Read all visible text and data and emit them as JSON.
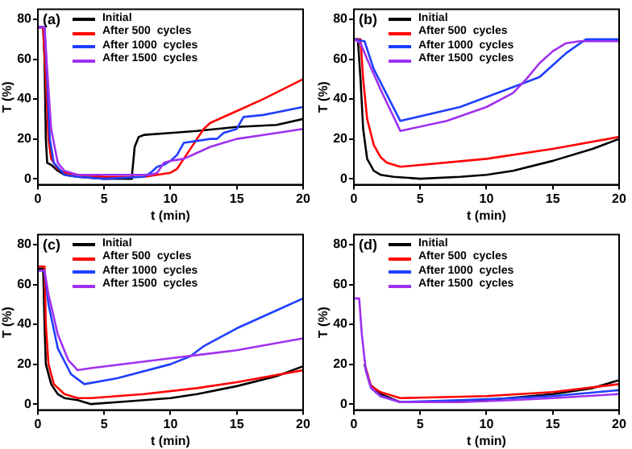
{
  "chart_data": [
    {
      "type": "line",
      "annotations": [
        "(a)"
      ],
      "xlabel": "t (min)",
      "ylabel": "T (%)",
      "xlim": [
        0,
        20
      ],
      "xticks": [
        0,
        5,
        10,
        15,
        20
      ],
      "ylim": [
        -3,
        85
      ],
      "yticks": [
        0,
        20,
        40,
        60,
        80
      ],
      "legend": "top left",
      "marker": "none",
      "line_style": "solid",
      "series": [
        {
          "name": "Initial",
          "color": "#000000",
          "x": [
            0,
            0.4,
            0.5,
            0.6,
            0.7,
            1,
            1.5,
            2,
            3,
            5,
            7,
            7.1,
            7.3,
            7.6,
            8,
            10,
            12,
            15,
            18,
            20
          ],
          "values": [
            76,
            76,
            60,
            20,
            8,
            7,
            4,
            2,
            1,
            0,
            0,
            2,
            16,
            21,
            22,
            23,
            24,
            26,
            27,
            30
          ]
        },
        {
          "name": "After 500  cycles",
          "color": "#ff0000",
          "x": [
            0,
            0.4,
            0.6,
            0.8,
            1,
            1.5,
            2,
            3,
            5,
            8,
            9,
            10,
            10.5,
            11,
            12,
            12.5,
            13,
            15,
            17,
            20
          ],
          "values": [
            76,
            76,
            50,
            20,
            10,
            5,
            3,
            2,
            1,
            1,
            2,
            3,
            5,
            10,
            20,
            25,
            28,
            34,
            40,
            50
          ]
        },
        {
          "name": "After 1000  cycles",
          "color": "#1f3fff",
          "x": [
            0,
            0.5,
            0.7,
            0.9,
            1.2,
            2,
            3,
            5,
            8,
            8.5,
            9,
            9.5,
            10,
            10.5,
            11,
            12,
            13,
            13.5,
            14,
            15,
            15.5,
            17,
            20
          ],
          "values": [
            76,
            76,
            50,
            20,
            8,
            2,
            1,
            0,
            1,
            3,
            6,
            7,
            9,
            12,
            18,
            19,
            20,
            20,
            23,
            25,
            31,
            32,
            36
          ]
        },
        {
          "name": "After 1500  cycles",
          "color": "#a030f0",
          "x": [
            0,
            0.5,
            0.7,
            1,
            1.5,
            2,
            3,
            5,
            8.5,
            9,
            9.5,
            10,
            11,
            12,
            13,
            14,
            15,
            17,
            20
          ],
          "values": [
            76,
            76,
            55,
            25,
            8,
            4,
            2,
            2,
            2,
            3,
            8,
            9,
            10,
            13,
            16,
            18,
            20,
            22,
            25
          ]
        }
      ]
    },
    {
      "type": "line",
      "annotations": [
        "(b)"
      ],
      "xlabel": "t (min)",
      "ylabel": "T (%)",
      "xlim": [
        0,
        20
      ],
      "xticks": [
        0,
        5,
        10,
        15,
        20
      ],
      "ylim": [
        -3,
        85
      ],
      "yticks": [
        0,
        20,
        40,
        60,
        80
      ],
      "legend": "top left",
      "marker": "none",
      "line_style": "solid",
      "series": [
        {
          "name": "Initial",
          "color": "#000000",
          "x": [
            0,
            0.3,
            0.5,
            0.7,
            1,
            1.5,
            2,
            3,
            5,
            8,
            10,
            12,
            15,
            18,
            20
          ],
          "values": [
            70,
            70,
            50,
            25,
            10,
            4,
            2,
            1,
            0,
            1,
            2,
            4,
            9,
            15,
            20
          ]
        },
        {
          "name": "After 500  cycles",
          "color": "#ff0000",
          "x": [
            0,
            0.5,
            0.7,
            1,
            1.5,
            2,
            2.5,
            3.5,
            10,
            15,
            20
          ],
          "values": [
            70,
            70,
            50,
            30,
            17,
            11,
            8,
            6,
            10,
            15,
            21
          ]
        },
        {
          "name": "After 1000  cycles",
          "color": "#1f3fff",
          "x": [
            0,
            0.8,
            1.5,
            3.5,
            8,
            12,
            14,
            15,
            16,
            17.5,
            20
          ],
          "values": [
            70,
            69,
            55,
            29,
            36,
            46,
            51,
            57,
            63,
            70,
            70
          ]
        },
        {
          "name": "After 1500  cycles",
          "color": "#a030f0",
          "x": [
            0,
            0.5,
            1,
            2,
            3.5,
            7,
            10,
            12,
            13,
            14,
            15,
            16,
            17,
            20
          ],
          "values": [
            70,
            68,
            60,
            45,
            24,
            29,
            36,
            43,
            50,
            58,
            64,
            68,
            69,
            69
          ]
        }
      ]
    },
    {
      "type": "line",
      "annotations": [
        "(c)"
      ],
      "xlabel": "t (min)",
      "ylabel": "T (%)",
      "xlim": [
        0,
        20
      ],
      "xticks": [
        0,
        5,
        10,
        15,
        20
      ],
      "ylim": [
        -3,
        85
      ],
      "yticks": [
        0,
        20,
        40,
        60,
        80
      ],
      "legend": "top left",
      "marker": "none",
      "line_style": "solid",
      "series": [
        {
          "name": "Initial",
          "color": "#000000",
          "x": [
            0,
            0.4,
            0.5,
            0.6,
            1,
            1.5,
            2,
            3,
            4,
            6,
            8,
            10,
            12,
            15,
            18,
            20
          ],
          "values": [
            68,
            68,
            40,
            20,
            10,
            5,
            3,
            2,
            0,
            1,
            2,
            3,
            5,
            9,
            14,
            19
          ]
        },
        {
          "name": "After 500  cycles",
          "color": "#ff0000",
          "x": [
            0,
            0.5,
            0.6,
            0.8,
            1.2,
            2,
            3,
            4,
            8,
            12,
            15,
            20
          ],
          "values": [
            69,
            69,
            40,
            20,
            10,
            5,
            3,
            3,
            5,
            8,
            11,
            17
          ]
        },
        {
          "name": "After 1000  cycles",
          "color": "#1f3fff",
          "x": [
            0,
            0.5,
            0.8,
            1.5,
            2.5,
            3.5,
            6,
            10,
            11.5,
            12.5,
            15,
            18,
            20
          ],
          "values": [
            67,
            67,
            50,
            28,
            15,
            10,
            13,
            20,
            24,
            29,
            38,
            47,
            53
          ]
        },
        {
          "name": "After 1500  cycles",
          "color": "#a030f0",
          "x": [
            0,
            0.5,
            0.8,
            1.5,
            2.3,
            3,
            4,
            10,
            15,
            20
          ],
          "values": [
            67,
            67,
            55,
            35,
            22,
            17,
            18,
            23,
            27,
            33
          ]
        }
      ]
    },
    {
      "type": "line",
      "annotations": [
        "(d)"
      ],
      "xlabel": "t (min)",
      "ylabel": "T (%)",
      "xlim": [
        0,
        20
      ],
      "xticks": [
        0,
        5,
        10,
        15,
        20
      ],
      "ylim": [
        -3,
        85
      ],
      "yticks": [
        0,
        20,
        40,
        60,
        80
      ],
      "legend": "top left",
      "marker": "none",
      "line_style": "solid",
      "series": [
        {
          "name": "Initial",
          "color": "#000000",
          "x": [
            0.8,
            1.2,
            2,
            3.5,
            6,
            10,
            15,
            18,
            20
          ],
          "values": [
            20,
            10,
            5,
            1,
            1,
            2,
            5,
            8,
            12
          ]
        },
        {
          "name": "After 500  cycles",
          "color": "#ff0000",
          "x": [
            0.9,
            1.3,
            2,
            3.5,
            10,
            15,
            20
          ],
          "values": [
            18,
            9,
            6,
            3,
            4,
            6,
            10
          ]
        },
        {
          "name": "After 1000  cycles",
          "color": "#1f3fff",
          "x": [
            0.9,
            1.3,
            2,
            3.5,
            8,
            12,
            15,
            20
          ],
          "values": [
            17,
            8,
            4,
            1,
            2,
            3,
            4,
            7
          ]
        },
        {
          "name": "After 1500  cycles",
          "color": "#a030f0",
          "x": [
            0,
            0.4,
            0.6,
            0.9,
            1.3,
            2,
            3.5,
            8,
            12,
            15,
            20
          ],
          "values": [
            53,
            53,
            35,
            17,
            8,
            4,
            1,
            1,
            2,
            3,
            5
          ]
        }
      ]
    }
  ]
}
